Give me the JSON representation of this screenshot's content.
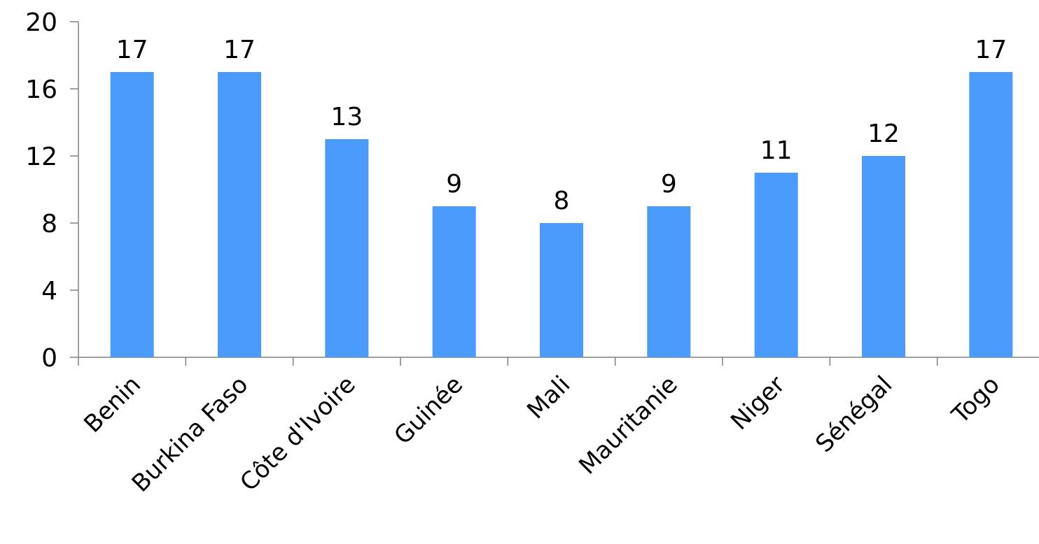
{
  "chart_data": {
    "type": "bar",
    "categories": [
      "Benin",
      "Burkina Faso",
      "Côte d'Ivoire",
      "Guinée",
      "Mali",
      "Mauritanie",
      "Niger",
      "Sénégal",
      "Togo"
    ],
    "values": [
      17,
      17,
      13,
      9,
      8,
      9,
      11,
      12,
      17
    ],
    "data_labels": [
      "17",
      "17",
      "13",
      "9",
      "8",
      "9",
      "11",
      "12",
      "17"
    ],
    "yticks": [
      0,
      4,
      8,
      12,
      16,
      20
    ],
    "ytick_labels": [
      "0",
      "4",
      "8",
      "12",
      "16",
      "20"
    ],
    "ylim": [
      0,
      20
    ],
    "title": "",
    "xlabel": "",
    "ylabel": "",
    "grid": false,
    "legend": false,
    "bar_color": "#4a9bfb",
    "axis_color": "#808080"
  }
}
